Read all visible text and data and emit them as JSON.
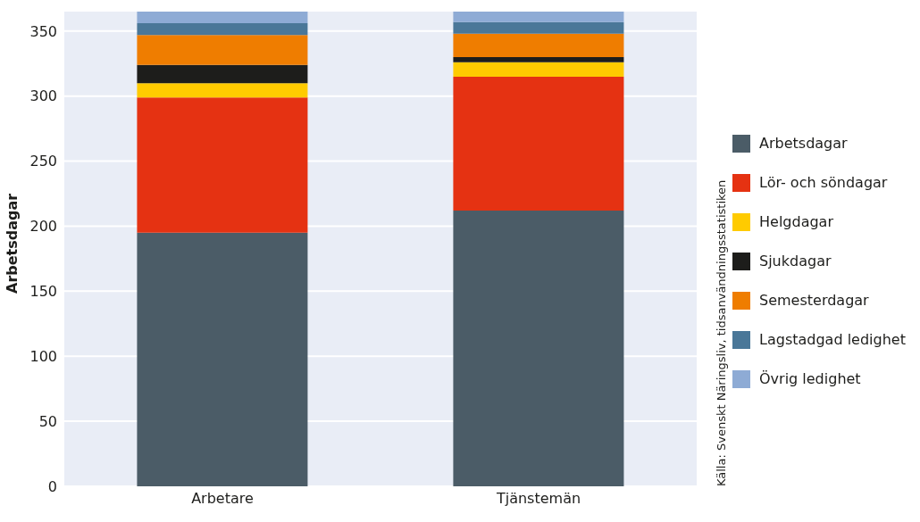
{
  "chart_data": {
    "type": "bar",
    "stacked": true,
    "ylabel": "Arbetsdagar",
    "categories": [
      "Arbetare",
      "Tjänstemän"
    ],
    "series": [
      {
        "name": "Arbetsdagar",
        "color": "#4b5c67",
        "values": [
          195,
          212
        ]
      },
      {
        "name": "Lör- och söndagar",
        "color": "#e53212",
        "values": [
          104,
          103
        ]
      },
      {
        "name": "Helgdagar",
        "color": "#ffcb00",
        "values": [
          11,
          11
        ]
      },
      {
        "name": "Sjukdagar",
        "color": "#1d1d1b",
        "values": [
          14,
          4
        ]
      },
      {
        "name": "Semesterdagar",
        "color": "#ef7d00",
        "values": [
          23,
          18
        ]
      },
      {
        "name": "Lagstadgad ledighet",
        "color": "#4a7798",
        "values": [
          9,
          9
        ]
      },
      {
        "name": "Övrig ledighet",
        "color": "#8eabd5",
        "values": [
          9,
          8
        ]
      }
    ],
    "ylim": [
      0,
      365
    ],
    "yticks": [
      0,
      50,
      100,
      150,
      200,
      250,
      300,
      350
    ],
    "grid": "y",
    "legend": "right",
    "annotations": [
      "Källa: Svenskt Näringsliv, tidsanvändningsstatistiken"
    ]
  }
}
